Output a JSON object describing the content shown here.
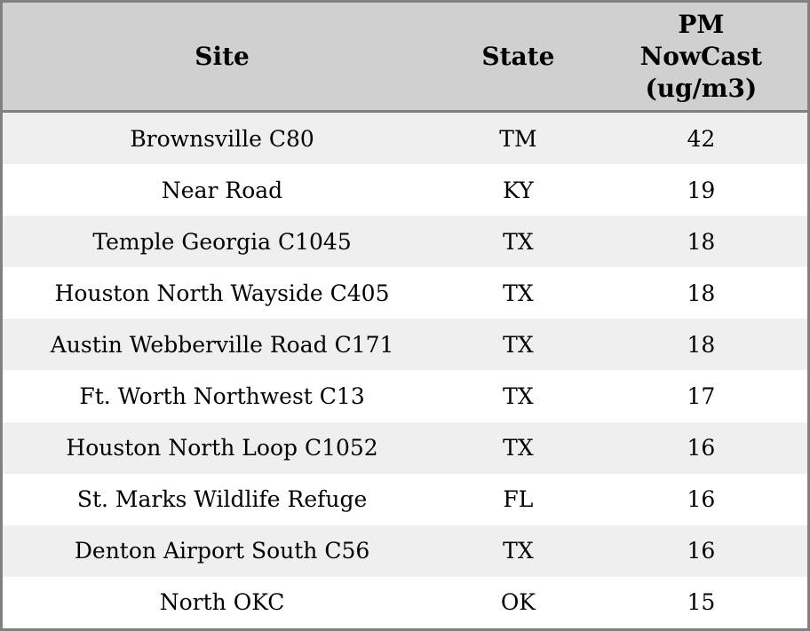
{
  "table": {
    "colors": {
      "header_bg": "#d0d0d0",
      "row_odd_bg": "#efefef",
      "row_even_bg": "#ffffff",
      "border": "#808080",
      "text": "#000000"
    },
    "columns": [
      {
        "label": "Site"
      },
      {
        "label": "State"
      },
      {
        "label": "PM NowCast (ug/m3)",
        "lines": [
          "PM",
          "NowCast",
          "(ug/m3)"
        ]
      }
    ],
    "rows": [
      {
        "site": "Brownsville C80",
        "state": "TM",
        "pm_nowcast": "42"
      },
      {
        "site": "Near Road",
        "state": "KY",
        "pm_nowcast": "19"
      },
      {
        "site": "Temple Georgia C1045",
        "state": "TX",
        "pm_nowcast": "18"
      },
      {
        "site": "Houston North Wayside C405",
        "state": "TX",
        "pm_nowcast": "18"
      },
      {
        "site": "Austin Webberville Road C171",
        "state": "TX",
        "pm_nowcast": "18"
      },
      {
        "site": "Ft. Worth Northwest C13",
        "state": "TX",
        "pm_nowcast": "17"
      },
      {
        "site": "Houston North Loop C1052",
        "state": "TX",
        "pm_nowcast": "16"
      },
      {
        "site": "St. Marks Wildlife Refuge",
        "state": "FL",
        "pm_nowcast": "16"
      },
      {
        "site": "Denton Airport South C56",
        "state": "TX",
        "pm_nowcast": "16"
      },
      {
        "site": "North OKC",
        "state": "OK",
        "pm_nowcast": "15"
      }
    ]
  }
}
